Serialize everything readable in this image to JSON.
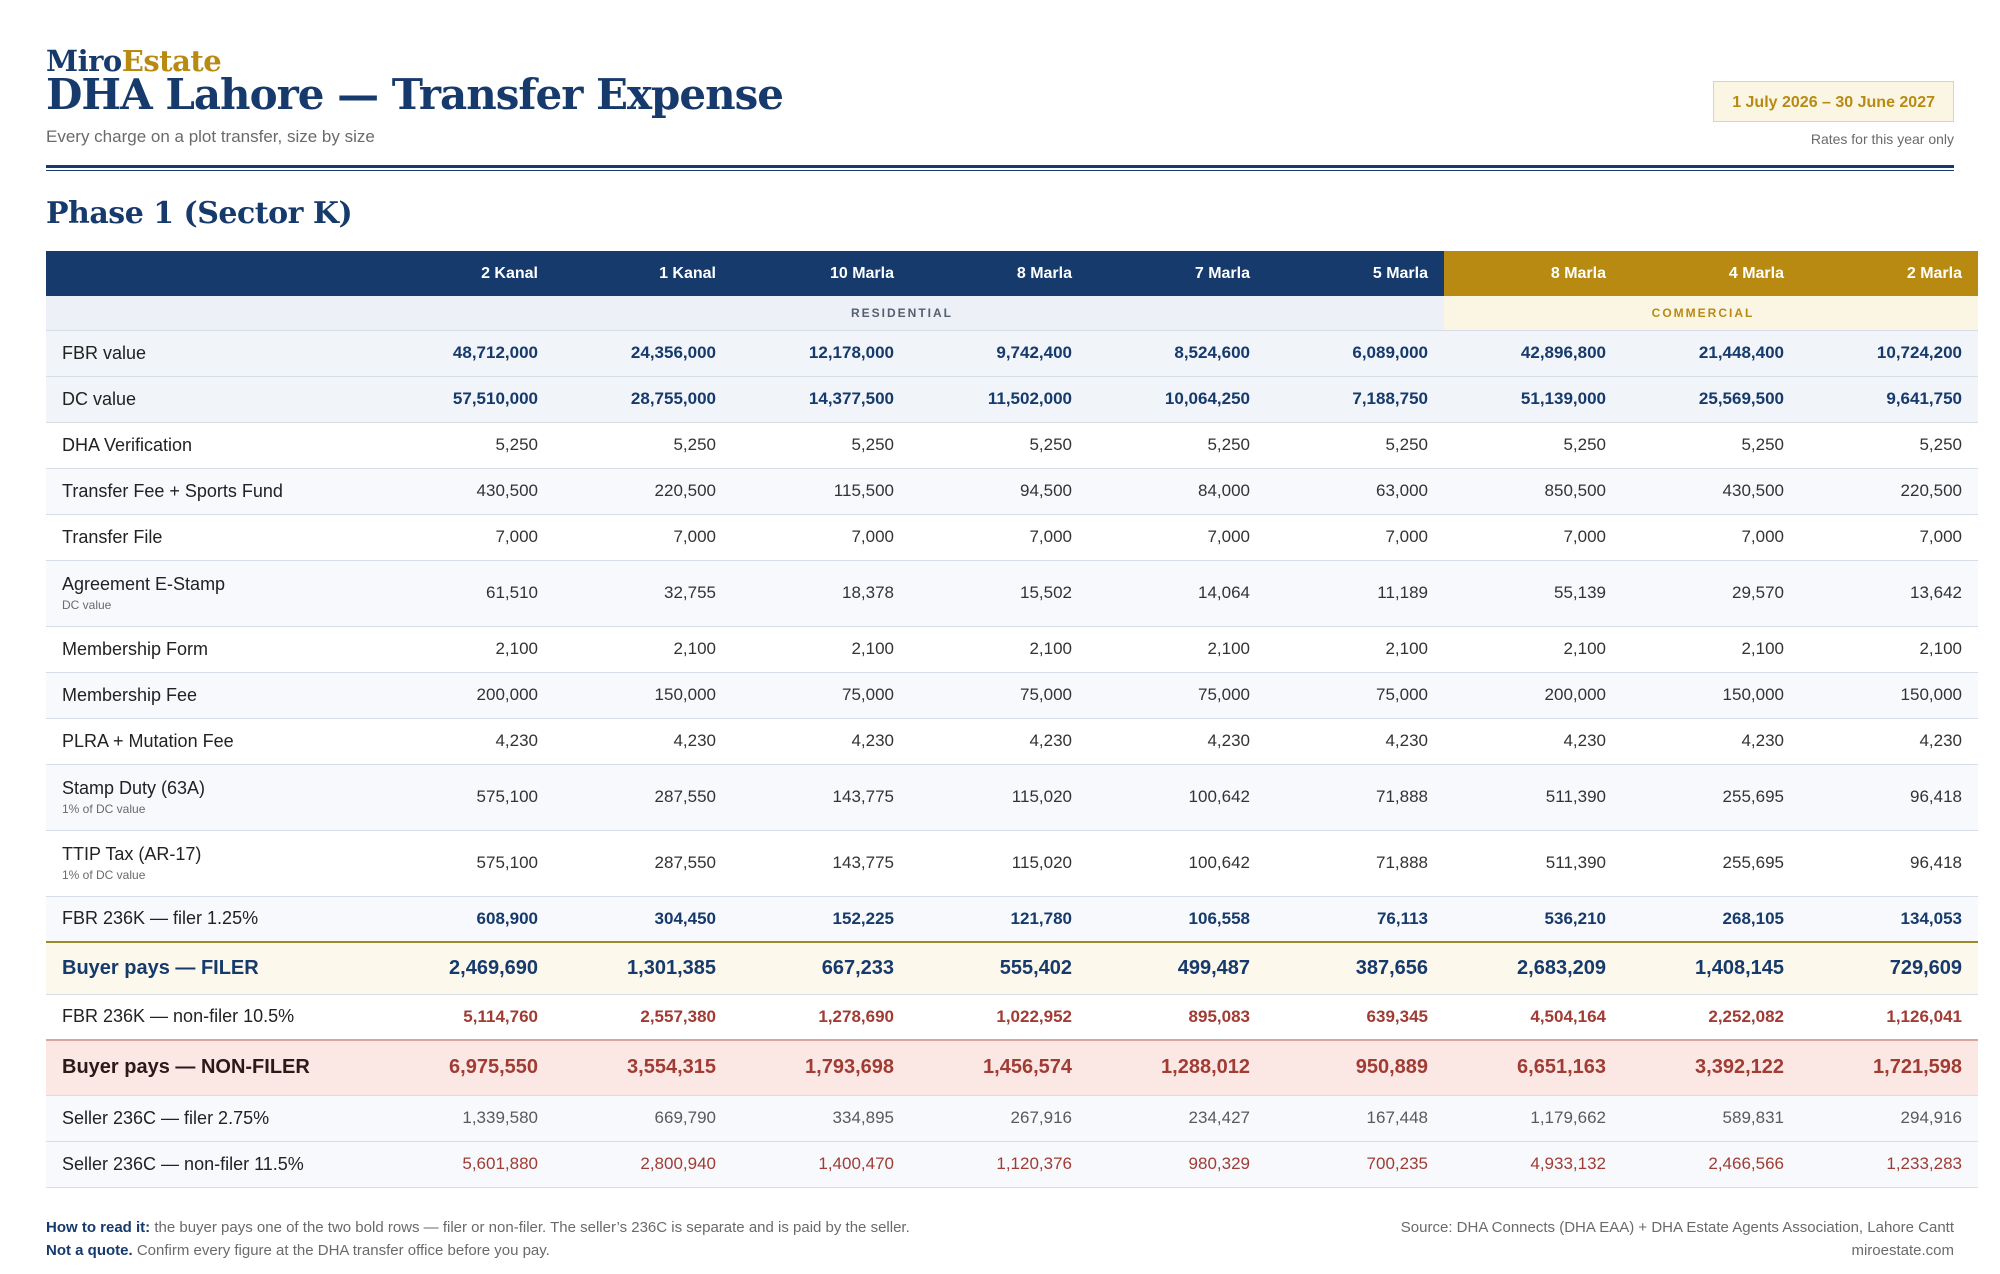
{
  "brand": {
    "part1": "Miro",
    "part2": "Estate"
  },
  "title": "DHA Lahore — Transfer Expense",
  "subtitle": "Every charge on a plot transfer, size by size",
  "period": {
    "label": "1 July 2026 – 30 June 2027",
    "note": "Rates for this year only"
  },
  "phase": "Phase 1 (Sector K)",
  "columns": [
    "2 Kanal",
    "1 Kanal",
    "10 Marla",
    "8 Marla",
    "7 Marla",
    "5 Marla",
    "8 Marla",
    "4 Marla",
    "2 Marla"
  ],
  "groups": {
    "residential": "RESIDENTIAL",
    "commercial": "COMMERCIAL"
  },
  "rows": [
    {
      "label": "FBR value",
      "values": [
        "48,712,000",
        "24,356,000",
        "12,178,000",
        "9,742,400",
        "8,524,600",
        "6,089,000",
        "42,896,800",
        "21,448,400",
        "10,724,200"
      ]
    },
    {
      "label": "DC value",
      "values": [
        "57,510,000",
        "28,755,000",
        "14,377,500",
        "11,502,000",
        "10,064,250",
        "7,188,750",
        "51,139,000",
        "25,569,500",
        "9,641,750"
      ]
    },
    {
      "label": "DHA Verification",
      "values": [
        "5,250",
        "5,250",
        "5,250",
        "5,250",
        "5,250",
        "5,250",
        "5,250",
        "5,250",
        "5,250"
      ]
    },
    {
      "label": "Transfer Fee + Sports Fund",
      "values": [
        "430,500",
        "220,500",
        "115,500",
        "94,500",
        "84,000",
        "63,000",
        "850,500",
        "430,500",
        "220,500"
      ]
    },
    {
      "label": "Transfer File",
      "values": [
        "7,000",
        "7,000",
        "7,000",
        "7,000",
        "7,000",
        "7,000",
        "7,000",
        "7,000",
        "7,000"
      ]
    },
    {
      "label": "Agreement E-Stamp",
      "sub": "DC value",
      "values": [
        "61,510",
        "32,755",
        "18,378",
        "15,502",
        "14,064",
        "11,189",
        "55,139",
        "29,570",
        "13,642"
      ]
    },
    {
      "label": "Membership Form",
      "values": [
        "2,100",
        "2,100",
        "2,100",
        "2,100",
        "2,100",
        "2,100",
        "2,100",
        "2,100",
        "2,100"
      ]
    },
    {
      "label": "Membership Fee",
      "values": [
        "200,000",
        "150,000",
        "75,000",
        "75,000",
        "75,000",
        "75,000",
        "200,000",
        "150,000",
        "150,000"
      ]
    },
    {
      "label": "PLRA + Mutation Fee",
      "values": [
        "4,230",
        "4,230",
        "4,230",
        "4,230",
        "4,230",
        "4,230",
        "4,230",
        "4,230",
        "4,230"
      ]
    },
    {
      "label": "Stamp Duty (63A)",
      "sub": "1% of DC value",
      "values": [
        "575,100",
        "287,550",
        "143,775",
        "115,020",
        "100,642",
        "71,888",
        "511,390",
        "255,695",
        "96,418"
      ]
    },
    {
      "label": "TTIP Tax (AR-17)",
      "sub": "1% of DC value",
      "values": [
        "575,100",
        "287,550",
        "143,775",
        "115,020",
        "100,642",
        "71,888",
        "511,390",
        "255,695",
        "96,418"
      ]
    },
    {
      "label": "FBR 236K — filer 1.25%",
      "values": [
        "608,900",
        "304,450",
        "152,225",
        "121,780",
        "106,558",
        "76,113",
        "536,210",
        "268,105",
        "134,053"
      ]
    },
    {
      "label": "Buyer pays — FILER",
      "values": [
        "2,469,690",
        "1,301,385",
        "667,233",
        "555,402",
        "499,487",
        "387,656",
        "2,683,209",
        "1,408,145",
        "729,609"
      ]
    },
    {
      "label": "FBR 236K — non-filer 10.5%",
      "values": [
        "5,114,760",
        "2,557,380",
        "1,278,690",
        "1,022,952",
        "895,083",
        "639,345",
        "4,504,164",
        "2,252,082",
        "1,126,041"
      ]
    },
    {
      "label": "Buyer pays — NON-FILER",
      "values": [
        "6,975,550",
        "3,554,315",
        "1,793,698",
        "1,456,574",
        "1,288,012",
        "950,889",
        "6,651,163",
        "3,392,122",
        "1,721,598"
      ]
    },
    {
      "label": "Seller 236C — filer 2.75%",
      "values": [
        "1,339,580",
        "669,790",
        "334,895",
        "267,916",
        "234,427",
        "167,448",
        "1,179,662",
        "589,831",
        "294,916"
      ]
    },
    {
      "label": "Seller 236C — non-filer 11.5%",
      "values": [
        "5,601,880",
        "2,800,940",
        "1,400,470",
        "1,120,376",
        "980,329",
        "700,235",
        "4,933,132",
        "2,466,566",
        "1,233,283"
      ]
    }
  ],
  "footer": {
    "how_label": "How to read it:",
    "how_text": " the buyer pays one of the two bold rows — filer or non-filer. The seller’s 236C is separate and is paid by the seller.",
    "quote_label": "Not a quote.",
    "quote_text": " Confirm every figure at the DHA transfer office before you pay.",
    "source": "Source: DHA Connects (DHA EAA) + DHA Estate Agents Association, Lahore Cantt",
    "site": "miroestate.com"
  },
  "colors": {
    "navy": "#163a6b",
    "gold": "#b88a12",
    "red": "#a03c34"
  }
}
